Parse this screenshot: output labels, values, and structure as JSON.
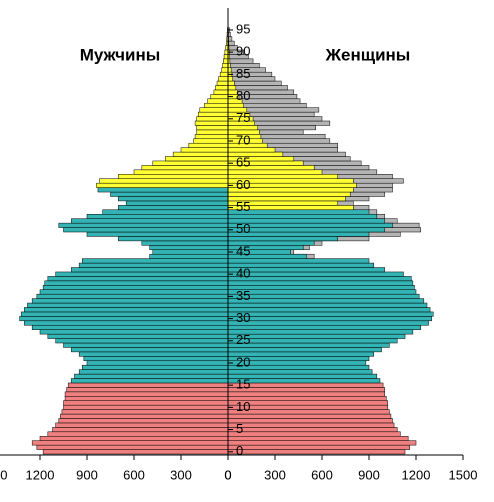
{
  "chart_data": {
    "type": "population-pyramid",
    "categories": [
      "0",
      null,
      null,
      null,
      null,
      "5",
      null,
      null,
      null,
      null,
      "10",
      null,
      null,
      null,
      null,
      "15",
      null,
      null,
      null,
      null,
      "20",
      null,
      null,
      null,
      null,
      "25",
      null,
      null,
      null,
      null,
      "30",
      null,
      null,
      null,
      null,
      "35",
      null,
      null,
      null,
      null,
      "40",
      null,
      null,
      null,
      null,
      "45",
      null,
      null,
      null,
      null,
      "50",
      null,
      null,
      null,
      null,
      "55",
      null,
      null,
      null,
      null,
      "60",
      null,
      null,
      null,
      null,
      "65",
      null,
      null,
      null,
      null,
      "70",
      null,
      null,
      null,
      null,
      "75",
      null,
      null,
      null,
      null,
      "80",
      null,
      null,
      null,
      null,
      "85",
      null,
      null,
      null,
      null,
      "90",
      null,
      null,
      null,
      null,
      "95"
    ],
    "xlim": [
      0,
      1500
    ],
    "xticks": [
      0,
      300,
      600,
      900,
      1200,
      1500
    ],
    "series": [
      {
        "name": "Мужчины",
        "side": "left",
        "values": [
          1180,
          1220,
          1250,
          1200,
          1150,
          1120,
          1100,
          1080,
          1070,
          1060,
          1050,
          1050,
          1040,
          1040,
          1030,
          1020,
          1000,
          980,
          950,
          930,
          900,
          920,
          950,
          1000,
          1050,
          1100,
          1150,
          1200,
          1250,
          1300,
          1330,
          1320,
          1300,
          1280,
          1250,
          1220,
          1200,
          1180,
          1170,
          1150,
          1100,
          1000,
          950,
          930,
          500,
          480,
          500,
          550,
          700,
          900,
          1050,
          1080,
          1000,
          900,
          800,
          700,
          650,
          700,
          750,
          830,
          840,
          820,
          700,
          600,
          550,
          480,
          400,
          350,
          300,
          250,
          220,
          210,
          200,
          200,
          210,
          200,
          190,
          180,
          150,
          130,
          110,
          90,
          80,
          70,
          60,
          50,
          40,
          35,
          30,
          25,
          20,
          15,
          10,
          8,
          6,
          4
        ],
        "colors": [
          "#f08080",
          "#f08080",
          "#f08080",
          "#f08080",
          "#f08080",
          "#f08080",
          "#f08080",
          "#f08080",
          "#f08080",
          "#f08080",
          "#f08080",
          "#f08080",
          "#f08080",
          "#f08080",
          "#f08080",
          "#f08080",
          "#33b3b3",
          "#33b3b3",
          "#33b3b3",
          "#33b3b3",
          "#33b3b3",
          "#33b3b3",
          "#33b3b3",
          "#33b3b3",
          "#33b3b3",
          "#33b3b3",
          "#33b3b3",
          "#33b3b3",
          "#33b3b3",
          "#33b3b3",
          "#33b3b3",
          "#33b3b3",
          "#33b3b3",
          "#33b3b3",
          "#33b3b3",
          "#33b3b3",
          "#33b3b3",
          "#33b3b3",
          "#33b3b3",
          "#33b3b3",
          "#33b3b3",
          "#33b3b3",
          "#33b3b3",
          "#33b3b3",
          "#33b3b3",
          "#33b3b3",
          "#33b3b3",
          "#33b3b3",
          "#33b3b3",
          "#33b3b3",
          "#33b3b3",
          "#33b3b3",
          "#33b3b3",
          "#33b3b3",
          "#33b3b3",
          "#33b3b3",
          "#33b3b3",
          "#33b3b3",
          "#33b3b3",
          "#33b3b3",
          "#ffff33",
          "#ffff33",
          "#ffff33",
          "#ffff33",
          "#ffff33",
          "#ffff33",
          "#ffff33",
          "#ffff33",
          "#ffff33",
          "#ffff33",
          "#ffff33",
          "#ffff33",
          "#ffff33",
          "#ffff33",
          "#ffff33",
          "#ffff33",
          "#ffff33",
          "#ffff33",
          "#ffff33",
          "#ffff33",
          "#ffff33",
          "#ffff33",
          "#ffff33",
          "#ffff33",
          "#ffff33",
          "#ffff33",
          "#ffff33",
          "#ffff33",
          "#ffff33",
          "#ffff33",
          "#ffff33",
          "#ffff33",
          "#ffff33",
          "#ffff33",
          "#ffff33",
          "#ffff33"
        ]
      },
      {
        "side": "right",
        "color": "#b4b4b4",
        "values": [
          null,
          null,
          null,
          null,
          null,
          null,
          null,
          null,
          null,
          null,
          null,
          null,
          null,
          null,
          null,
          null,
          null,
          null,
          null,
          null,
          null,
          null,
          null,
          null,
          null,
          null,
          null,
          null,
          null,
          null,
          null,
          null,
          null,
          null,
          null,
          null,
          null,
          null,
          null,
          null,
          null,
          null,
          null,
          null,
          550,
          420,
          520,
          600,
          900,
          1100,
          1230,
          1220,
          1080,
          1000,
          950,
          900,
          800,
          900,
          1000,
          1050,
          1050,
          1120,
          1050,
          950,
          900,
          850,
          780,
          750,
          700,
          700,
          650,
          620,
          480,
          560,
          650,
          600,
          550,
          580,
          500,
          460,
          440,
          420,
          380,
          340,
          300,
          280,
          240,
          200,
          160,
          130,
          100,
          60,
          40,
          25,
          15,
          10
        ]
      },
      {
        "name": "Женщины",
        "side": "right",
        "values": [
          1130,
          1160,
          1200,
          1150,
          1100,
          1080,
          1060,
          1050,
          1040,
          1030,
          1020,
          1020,
          1010,
          1000,
          1000,
          990,
          970,
          950,
          920,
          900,
          880,
          900,
          930,
          980,
          1030,
          1080,
          1130,
          1180,
          1230,
          1280,
          1300,
          1310,
          1290,
          1270,
          1250,
          1220,
          1200,
          1190,
          1180,
          1170,
          1120,
          1000,
          930,
          900,
          500,
          400,
          480,
          550,
          700,
          900,
          1000,
          1050,
          1000,
          950,
          900,
          800,
          700,
          750,
          780,
          800,
          820,
          800,
          700,
          600,
          550,
          480,
          420,
          350,
          300,
          250,
          220,
          210,
          200,
          190,
          170,
          160,
          140,
          120,
          100,
          90,
          70,
          60,
          50,
          40,
          30,
          25,
          20,
          15,
          12,
          10,
          8,
          6,
          5,
          4,
          3,
          2
        ],
        "colors": [
          "#f08080",
          "#f08080",
          "#f08080",
          "#f08080",
          "#f08080",
          "#f08080",
          "#f08080",
          "#f08080",
          "#f08080",
          "#f08080",
          "#f08080",
          "#f08080",
          "#f08080",
          "#f08080",
          "#f08080",
          "#f08080",
          "#33b3b3",
          "#33b3b3",
          "#33b3b3",
          "#33b3b3",
          "#33b3b3",
          "#33b3b3",
          "#33b3b3",
          "#33b3b3",
          "#33b3b3",
          "#33b3b3",
          "#33b3b3",
          "#33b3b3",
          "#33b3b3",
          "#33b3b3",
          "#33b3b3",
          "#33b3b3",
          "#33b3b3",
          "#33b3b3",
          "#33b3b3",
          "#33b3b3",
          "#33b3b3",
          "#33b3b3",
          "#33b3b3",
          "#33b3b3",
          "#33b3b3",
          "#33b3b3",
          "#33b3b3",
          "#33b3b3",
          "#33b3b3",
          "#33b3b3",
          "#33b3b3",
          "#33b3b3",
          "#33b3b3",
          "#33b3b3",
          "#33b3b3",
          "#33b3b3",
          "#33b3b3",
          "#33b3b3",
          "#33b3b3",
          "#ffff33",
          "#ffff33",
          "#ffff33",
          "#ffff33",
          "#ffff33",
          "#ffff33",
          "#ffff33",
          "#ffff33",
          "#ffff33",
          "#ffff33",
          "#ffff33",
          "#ffff33",
          "#ffff33",
          "#ffff33",
          "#ffff33",
          "#ffff33",
          "#ffff33",
          "#ffff33",
          "#ffff33",
          "#ffff33",
          "#ffff33",
          "#ffff33",
          "#ffff33",
          "#ffff33",
          "#ffff33",
          "#ffff33",
          "#ffff33",
          "#ffff33",
          "#ffff33",
          "#ffff33",
          "#ffff33",
          "#ffff33",
          "#ffff33",
          "#ffff33",
          "#ffff33",
          "#ffff33",
          "#ffff33",
          "#ffff33",
          "#ffff33",
          "#ffff33",
          "#ffff33"
        ]
      }
    ]
  }
}
